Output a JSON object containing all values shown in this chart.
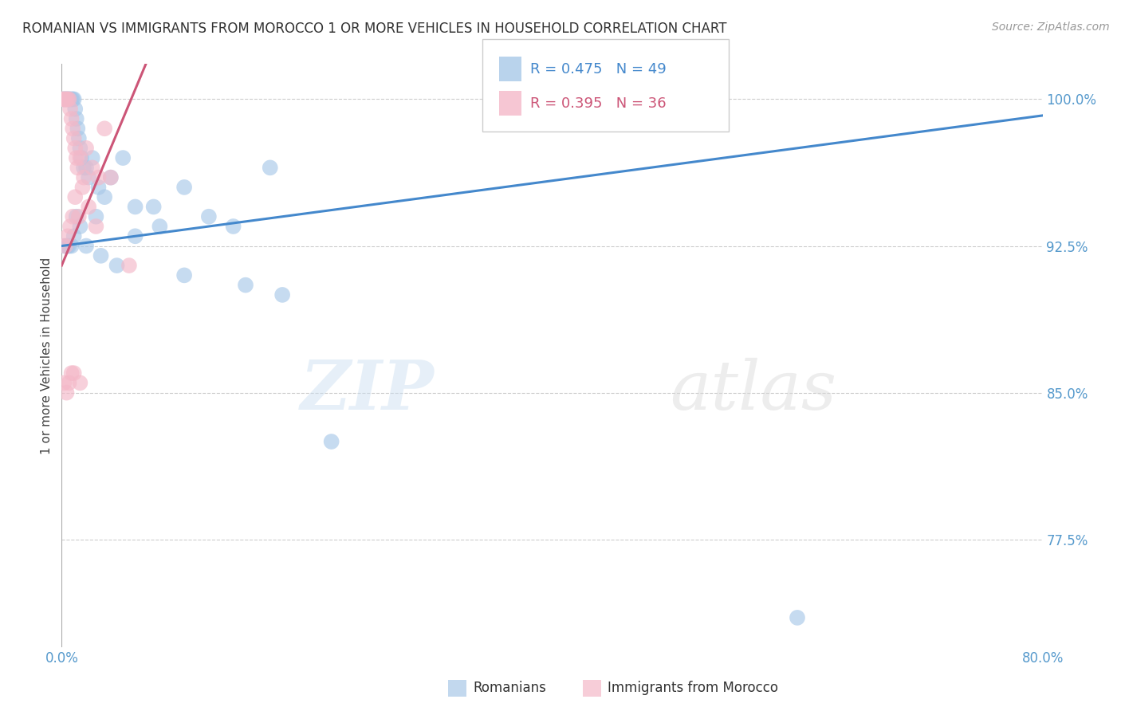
{
  "title": "ROMANIAN VS IMMIGRANTS FROM MOROCCO 1 OR MORE VEHICLES IN HOUSEHOLD CORRELATION CHART",
  "source": "Source: ZipAtlas.com",
  "ylabel": "1 or more Vehicles in Household",
  "legend_label1": "Romanians",
  "legend_label2": "Immigrants from Morocco",
  "r1": 0.475,
  "n1": 49,
  "r2": 0.395,
  "n2": 36,
  "blue_color": "#a8c8e8",
  "pink_color": "#f4b8c8",
  "blue_line_color": "#4488cc",
  "pink_line_color": "#cc5577",
  "blue_x": [
    0.1,
    0.2,
    0.3,
    0.4,
    0.5,
    0.6,
    0.7,
    0.8,
    0.9,
    1.0,
    1.1,
    1.2,
    1.3,
    1.4,
    1.5,
    1.6,
    1.8,
    2.0,
    2.2,
    2.5,
    3.0,
    3.5,
    4.0,
    5.0,
    6.0,
    7.5,
    10.0,
    12.0,
    14.0,
    17.0,
    0.2,
    0.4,
    0.5,
    0.6,
    0.8,
    1.0,
    1.2,
    1.5,
    2.0,
    2.8,
    3.2,
    4.5,
    6.0,
    8.0,
    10.0,
    15.0,
    18.0,
    22.0,
    60.0
  ],
  "blue_y": [
    100.0,
    100.0,
    100.0,
    100.0,
    100.0,
    100.0,
    100.0,
    100.0,
    100.0,
    100.0,
    99.5,
    99.0,
    98.5,
    98.0,
    97.5,
    97.0,
    96.5,
    96.5,
    96.0,
    97.0,
    95.5,
    95.0,
    96.0,
    97.0,
    94.5,
    94.5,
    95.5,
    94.0,
    93.5,
    96.5,
    92.5,
    92.5,
    92.5,
    92.5,
    92.5,
    93.0,
    94.0,
    93.5,
    92.5,
    94.0,
    92.0,
    91.5,
    93.0,
    93.5,
    91.0,
    90.5,
    90.0,
    82.5,
    73.5
  ],
  "pink_x": [
    0.1,
    0.2,
    0.3,
    0.4,
    0.5,
    0.6,
    0.7,
    0.8,
    0.9,
    1.0,
    1.1,
    1.2,
    1.3,
    1.5,
    1.8,
    2.0,
    2.5,
    3.0,
    3.5,
    4.0,
    0.3,
    0.5,
    0.7,
    0.9,
    1.1,
    1.4,
    1.7,
    2.2,
    2.8,
    5.5,
    0.2,
    0.4,
    0.6,
    0.8,
    1.0,
    1.5
  ],
  "pink_y": [
    100.0,
    100.0,
    100.0,
    100.0,
    100.0,
    100.0,
    99.5,
    99.0,
    98.5,
    98.0,
    97.5,
    97.0,
    96.5,
    97.0,
    96.0,
    97.5,
    96.5,
    96.0,
    98.5,
    96.0,
    92.5,
    93.0,
    93.5,
    94.0,
    95.0,
    94.0,
    95.5,
    94.5,
    93.5,
    91.5,
    85.5,
    85.0,
    85.5,
    86.0,
    86.0,
    85.5
  ],
  "xmin": 0.0,
  "xmax": 80.0,
  "ymin": 72.0,
  "ymax": 101.8,
  "ytick_vals": [
    77.5,
    85.0,
    92.5,
    100.0
  ]
}
